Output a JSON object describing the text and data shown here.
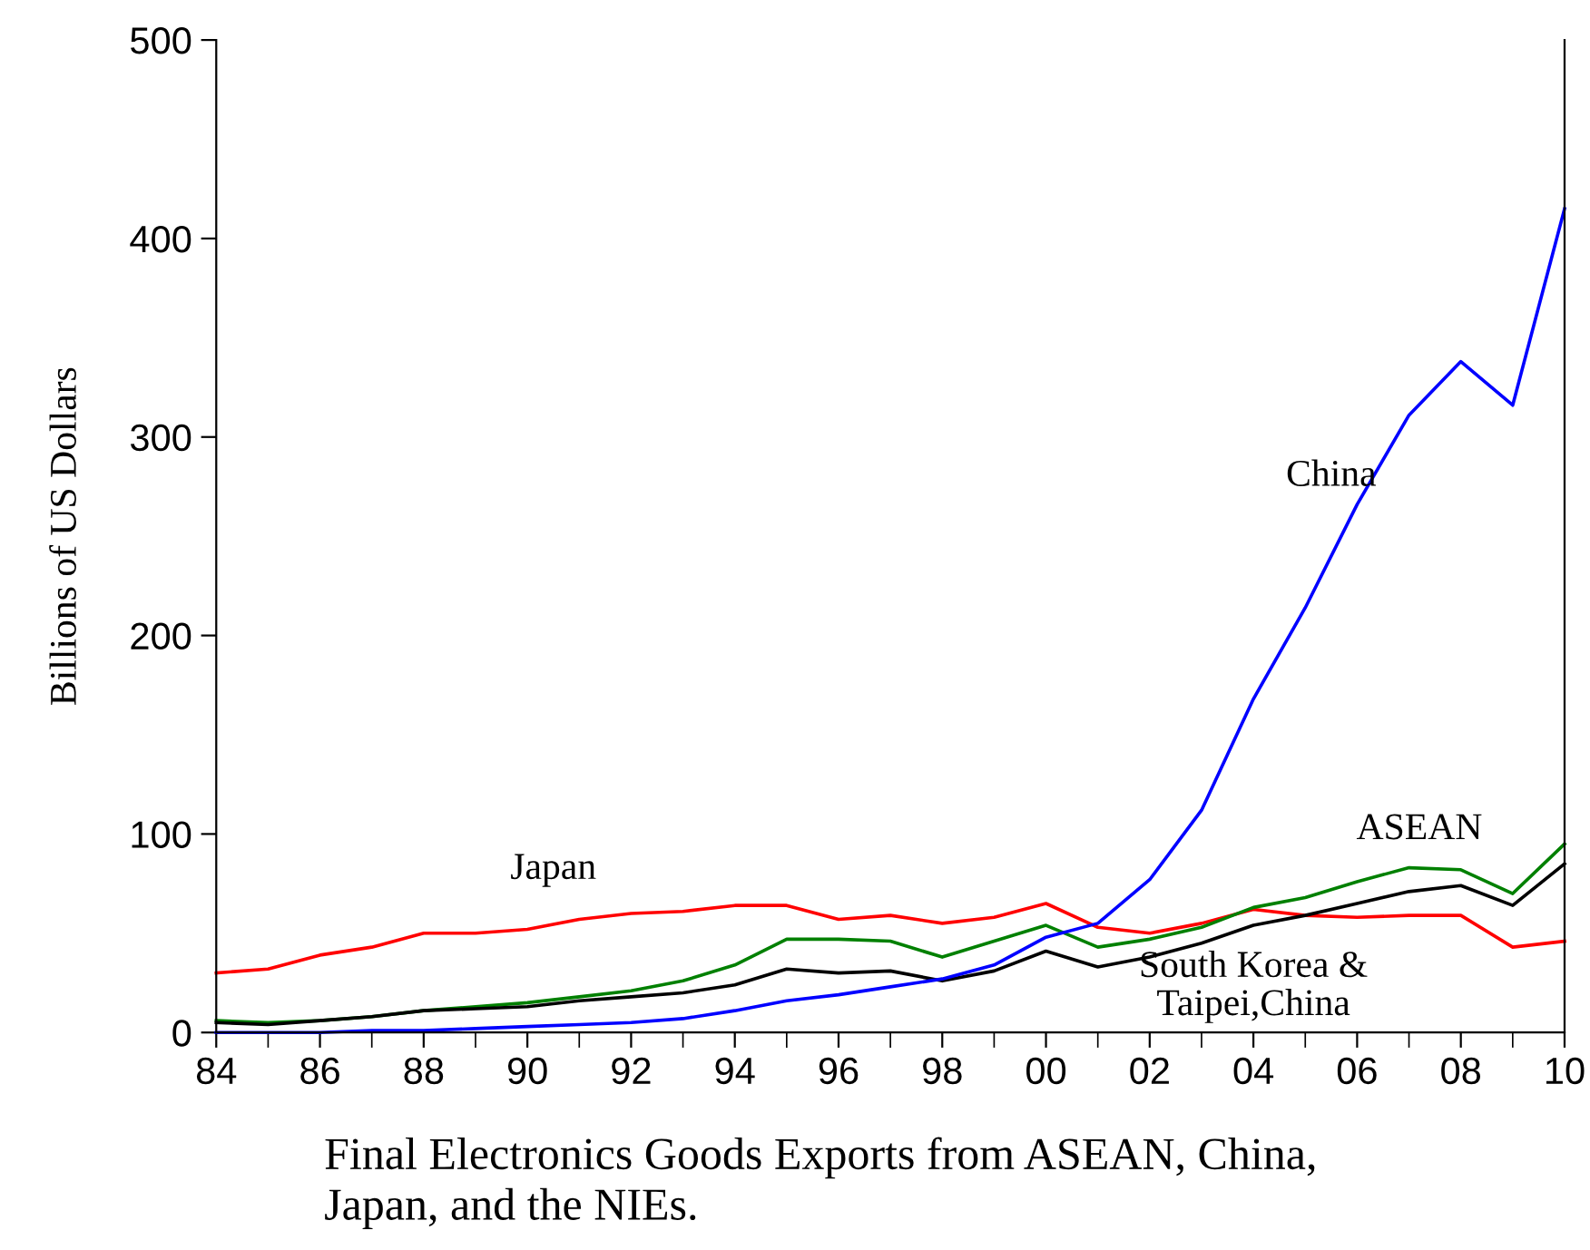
{
  "chart_data": {
    "type": "line",
    "ylabel": "Billions of US Dollars",
    "xlabel": "Final Electronics Goods Exports from ASEAN, China,\nJapan, and the NIEs.",
    "x": [
      1984,
      1985,
      1986,
      1987,
      1988,
      1989,
      1990,
      1991,
      1992,
      1993,
      1994,
      1995,
      1996,
      1997,
      1998,
      1999,
      2000,
      2001,
      2002,
      2003,
      2004,
      2005,
      2006,
      2007,
      2008,
      2009,
      2010
    ],
    "series": [
      {
        "name": "Japan",
        "color": "#ff0000",
        "values": [
          30,
          32,
          39,
          43,
          50,
          50,
          52,
          57,
          60,
          61,
          64,
          64,
          57,
          59,
          55,
          58,
          65,
          53,
          50,
          55,
          62,
          59,
          58,
          59,
          59,
          43,
          46
        ]
      },
      {
        "name": "ASEAN",
        "color": "#008000",
        "values": [
          6,
          5,
          6,
          8,
          11,
          13,
          15,
          18,
          21,
          26,
          34,
          47,
          47,
          46,
          38,
          46,
          54,
          43,
          47,
          53,
          63,
          68,
          76,
          83,
          82,
          70,
          95
        ]
      },
      {
        "name": "South Korea &\nTaipei,China",
        "color": "#000000",
        "values": [
          5,
          4,
          6,
          8,
          11,
          12,
          13,
          16,
          18,
          20,
          24,
          32,
          30,
          31,
          26,
          31,
          41,
          33,
          38,
          45,
          54,
          59,
          65,
          71,
          74,
          64,
          85
        ]
      },
      {
        "name": "China",
        "color": "#0000ff",
        "values": [
          0,
          0,
          0,
          1,
          1,
          2,
          3,
          4,
          5,
          7,
          11,
          16,
          19,
          23,
          27,
          34,
          48,
          55,
          77,
          112,
          168,
          214,
          266,
          311,
          338,
          316,
          415
        ]
      }
    ],
    "xlim": [
      1984,
      2010
    ],
    "xticks": [
      {
        "value": 1984,
        "label": "84"
      },
      {
        "value": 1986,
        "label": "86"
      },
      {
        "value": 1988,
        "label": "88"
      },
      {
        "value": 1990,
        "label": "90"
      },
      {
        "value": 1992,
        "label": "92"
      },
      {
        "value": 1994,
        "label": "94"
      },
      {
        "value": 1996,
        "label": "96"
      },
      {
        "value": 1998,
        "label": "98"
      },
      {
        "value": 2000,
        "label": "00"
      },
      {
        "value": 2002,
        "label": "02"
      },
      {
        "value": 2004,
        "label": "04"
      },
      {
        "value": 2006,
        "label": "06"
      },
      {
        "value": 2008,
        "label": "08"
      },
      {
        "value": 2010,
        "label": "10"
      }
    ],
    "ylim": [
      0,
      500
    ],
    "yticks": [
      0,
      100,
      200,
      300,
      400,
      500
    ],
    "grid": false,
    "legend": false,
    "marker": "none",
    "line_style": "solid"
  }
}
